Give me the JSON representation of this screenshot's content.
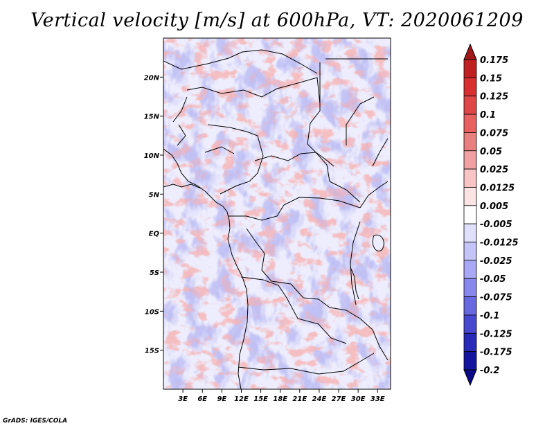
{
  "title": "Vertical velocity [m/s] at 600hPa, VT: 2020061209",
  "footer": "GrADS: IGES/COLA",
  "map": {
    "lon_range": [
      0,
      35
    ],
    "lat_range": [
      -20,
      25
    ],
    "lat_ticks": [
      {
        "value": 20,
        "label": "20N"
      },
      {
        "value": 15,
        "label": "15N"
      },
      {
        "value": 10,
        "label": "10N"
      },
      {
        "value": 5,
        "label": "5N"
      },
      {
        "value": 0,
        "label": "EQ"
      },
      {
        "value": -5,
        "label": "5S"
      },
      {
        "value": -10,
        "label": "10S"
      },
      {
        "value": -15,
        "label": "15S"
      }
    ],
    "lon_ticks": [
      {
        "value": 3,
        "label": "3E"
      },
      {
        "value": 6,
        "label": "6E"
      },
      {
        "value": 9,
        "label": "9E"
      },
      {
        "value": 12,
        "label": "12E"
      },
      {
        "value": 15,
        "label": "15E"
      },
      {
        "value": 18,
        "label": "18E"
      },
      {
        "value": 21,
        "label": "21E"
      },
      {
        "value": 24,
        "label": "24E"
      },
      {
        "value": 27,
        "label": "27E"
      },
      {
        "value": 30,
        "label": "30E"
      },
      {
        "value": 33,
        "label": "33E"
      }
    ]
  },
  "colorbar": {
    "labels": [
      "0.175",
      "0.15",
      "0.125",
      "0.1",
      "0.075",
      "0.05",
      "0.025",
      "0.0125",
      "0.005",
      "-0.005",
      "-0.0125",
      "-0.025",
      "-0.05",
      "-0.075",
      "-0.1",
      "-0.125",
      "-0.175",
      "-0.2"
    ],
    "colors": [
      "#a01818",
      "#c02020",
      "#d83030",
      "#e04848",
      "#e86060",
      "#e88080",
      "#f0a0a0",
      "#f8c4c4",
      "#fce4e4",
      "#ffffff",
      "#e0e0fc",
      "#c4c4f8",
      "#a8a8f4",
      "#8888ec",
      "#6868e0",
      "#4848d0",
      "#2a2ab8",
      "#1414a0",
      "#0a0a88"
    ]
  }
}
